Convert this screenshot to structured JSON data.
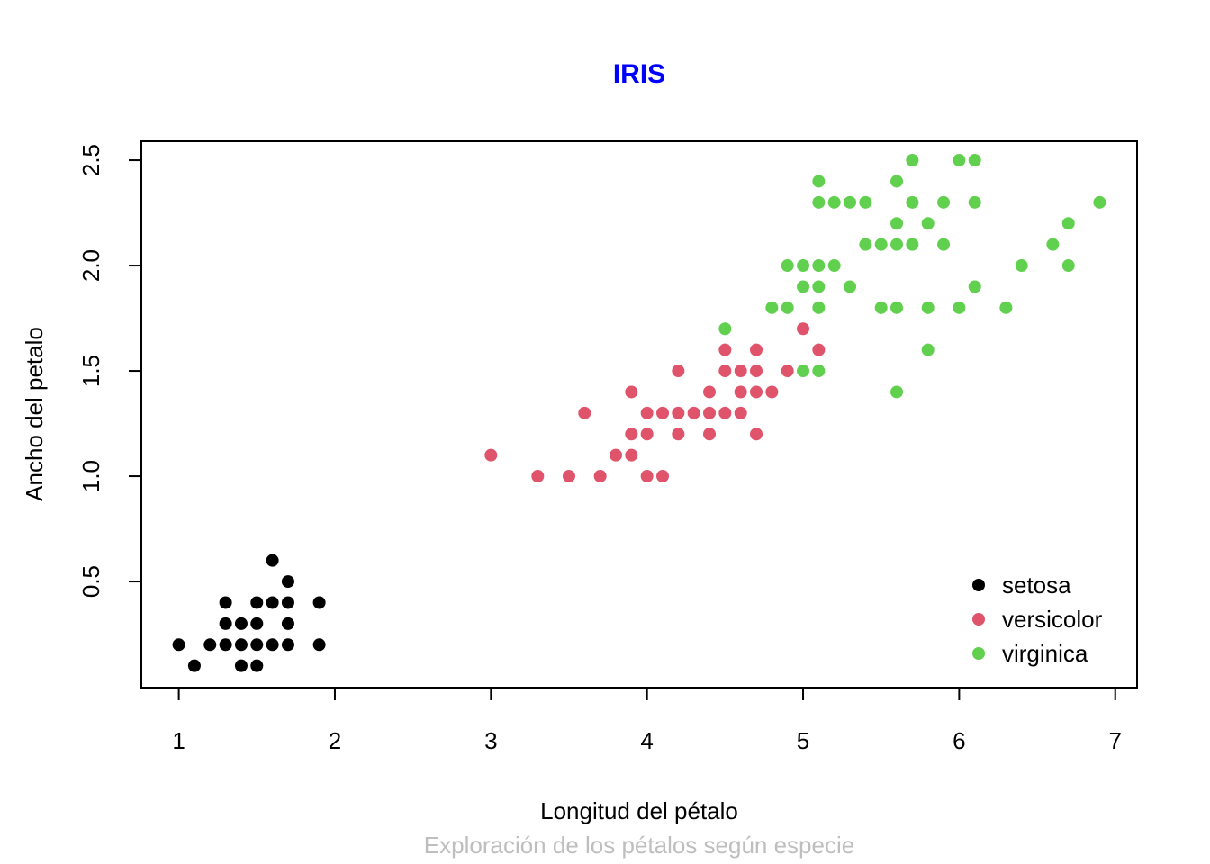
{
  "chart_data": {
    "type": "scatter",
    "title": "IRIS",
    "xlabel": "Longitud del pétalo",
    "ylabel": "Ancho del petalo",
    "subtitle": "Exploración de los pétalos según especie",
    "xlim": [
      0.76,
      7.14
    ],
    "ylim": [
      -0.004,
      2.59
    ],
    "xticks": [
      1,
      2,
      3,
      4,
      5,
      6,
      7
    ],
    "yticks": [
      0.5,
      1.0,
      1.5,
      2.0,
      2.5
    ],
    "ytick_labels": [
      "0.5",
      "1.0",
      "1.5",
      "2.0",
      "2.5"
    ],
    "grid": false,
    "legend_position": "bottom-right",
    "colors": {
      "title": "#0000FF",
      "subtitle": "#BEBEBE"
    },
    "series": [
      {
        "name": "setosa",
        "color": "#000000",
        "points": [
          [
            1.0,
            0.2
          ],
          [
            1.1,
            0.1
          ],
          [
            1.2,
            0.2
          ],
          [
            1.3,
            0.2
          ],
          [
            1.3,
            0.3
          ],
          [
            1.3,
            0.4
          ],
          [
            1.4,
            0.1
          ],
          [
            1.4,
            0.2
          ],
          [
            1.4,
            0.3
          ],
          [
            1.5,
            0.1
          ],
          [
            1.5,
            0.2
          ],
          [
            1.5,
            0.3
          ],
          [
            1.5,
            0.4
          ],
          [
            1.6,
            0.2
          ],
          [
            1.6,
            0.4
          ],
          [
            1.6,
            0.6
          ],
          [
            1.7,
            0.2
          ],
          [
            1.7,
            0.3
          ],
          [
            1.7,
            0.4
          ],
          [
            1.7,
            0.5
          ],
          [
            1.9,
            0.2
          ],
          [
            1.9,
            0.4
          ]
        ]
      },
      {
        "name": "versicolor",
        "color": "#DF536B",
        "points": [
          [
            3.0,
            1.1
          ],
          [
            3.3,
            1.0
          ],
          [
            3.5,
            1.0
          ],
          [
            3.6,
            1.3
          ],
          [
            3.7,
            1.0
          ],
          [
            3.8,
            1.1
          ],
          [
            3.9,
            1.1
          ],
          [
            3.9,
            1.2
          ],
          [
            3.9,
            1.4
          ],
          [
            4.0,
            1.0
          ],
          [
            4.0,
            1.2
          ],
          [
            4.0,
            1.3
          ],
          [
            4.1,
            1.0
          ],
          [
            4.1,
            1.3
          ],
          [
            4.2,
            1.2
          ],
          [
            4.2,
            1.3
          ],
          [
            4.2,
            1.5
          ],
          [
            4.3,
            1.3
          ],
          [
            4.4,
            1.2
          ],
          [
            4.4,
            1.3
          ],
          [
            4.4,
            1.4
          ],
          [
            4.5,
            1.3
          ],
          [
            4.5,
            1.5
          ],
          [
            4.5,
            1.6
          ],
          [
            4.6,
            1.3
          ],
          [
            4.6,
            1.4
          ],
          [
            4.6,
            1.5
          ],
          [
            4.7,
            1.2
          ],
          [
            4.7,
            1.4
          ],
          [
            4.7,
            1.5
          ],
          [
            4.7,
            1.6
          ],
          [
            4.8,
            1.4
          ],
          [
            4.9,
            1.5
          ],
          [
            5.0,
            1.7
          ],
          [
            5.1,
            1.6
          ]
        ]
      },
      {
        "name": "virginica",
        "color": "#61D04F",
        "points": [
          [
            4.5,
            1.7
          ],
          [
            4.8,
            1.8
          ],
          [
            4.9,
            1.8
          ],
          [
            4.9,
            2.0
          ],
          [
            5.0,
            1.5
          ],
          [
            5.0,
            1.9
          ],
          [
            5.0,
            2.0
          ],
          [
            5.1,
            1.5
          ],
          [
            5.1,
            1.8
          ],
          [
            5.1,
            1.9
          ],
          [
            5.1,
            2.0
          ],
          [
            5.1,
            2.3
          ],
          [
            5.1,
            2.4
          ],
          [
            5.2,
            2.0
          ],
          [
            5.2,
            2.3
          ],
          [
            5.3,
            1.9
          ],
          [
            5.3,
            2.3
          ],
          [
            5.4,
            2.1
          ],
          [
            5.4,
            2.3
          ],
          [
            5.5,
            1.8
          ],
          [
            5.5,
            2.1
          ],
          [
            5.6,
            1.4
          ],
          [
            5.6,
            1.8
          ],
          [
            5.6,
            2.1
          ],
          [
            5.6,
            2.2
          ],
          [
            5.6,
            2.4
          ],
          [
            5.7,
            2.1
          ],
          [
            5.7,
            2.3
          ],
          [
            5.7,
            2.5
          ],
          [
            5.8,
            1.6
          ],
          [
            5.8,
            1.8
          ],
          [
            5.8,
            2.2
          ],
          [
            5.9,
            2.1
          ],
          [
            5.9,
            2.3
          ],
          [
            6.0,
            1.8
          ],
          [
            6.0,
            2.5
          ],
          [
            6.1,
            1.9
          ],
          [
            6.1,
            2.3
          ],
          [
            6.1,
            2.5
          ],
          [
            6.3,
            1.8
          ],
          [
            6.4,
            2.0
          ],
          [
            6.6,
            2.1
          ],
          [
            6.7,
            2.0
          ],
          [
            6.7,
            2.2
          ],
          [
            6.9,
            2.3
          ]
        ]
      }
    ]
  }
}
